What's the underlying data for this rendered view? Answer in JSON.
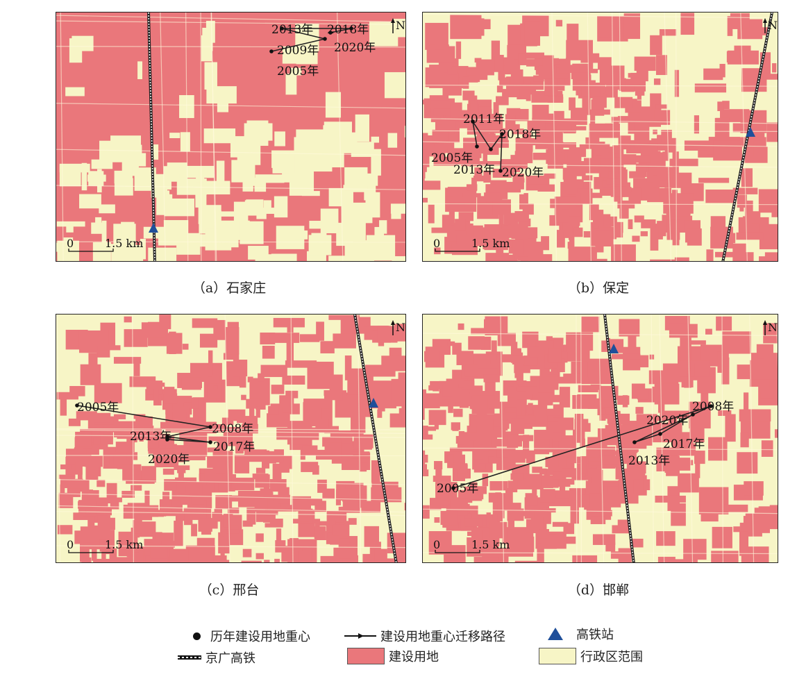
{
  "colors": {
    "built": "#ea777b",
    "admin": "#f7f5c6",
    "station": "#1f4f9a",
    "path": "#222222"
  },
  "panels": [
    {
      "id": "a",
      "caption": "（a）石家庄",
      "base": "built",
      "scale": "1.5 km",
      "zero": "0",
      "north": "N",
      "labels": [
        "2005年",
        "2009年",
        "2013年",
        "2018年",
        "2020年"
      ]
    },
    {
      "id": "b",
      "caption": "（b）保定",
      "base": "admin",
      "scale": "1.5 km",
      "zero": "0",
      "north": "N",
      "labels": [
        "2005年",
        "2011年",
        "2013年",
        "2018年",
        "2020年"
      ]
    },
    {
      "id": "c",
      "caption": "（c）邢台",
      "base": "admin",
      "scale": "1.5 km",
      "zero": "0",
      "north": "N",
      "labels": [
        "2005年",
        "2008年",
        "2013年",
        "2017年",
        "2020年"
      ]
    },
    {
      "id": "d",
      "caption": "（d）邯郸",
      "base": "admin",
      "scale": "1.5 km",
      "zero": "0",
      "north": "N",
      "labels": [
        "2005年",
        "2008年",
        "2013年",
        "2017年",
        "2020年"
      ]
    }
  ],
  "legend": {
    "centroid": "历年建设用地重心",
    "path": "建设用地重心迁移路径",
    "station": "高铁站",
    "railway": "京广高铁",
    "built": "建设用地",
    "admin": "行政区范围"
  }
}
